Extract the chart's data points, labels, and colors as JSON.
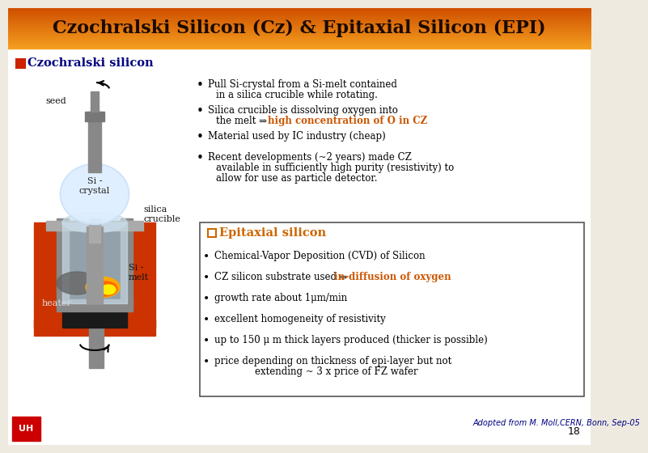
{
  "title": "Czochralski Silicon (Cz) & Epitaxial Silicon (EPI)",
  "title_bg_top": "#f5a020",
  "title_bg_bot": "#d05000",
  "title_text_color": "#1a0a00",
  "bg_color": "#eeeae0",
  "cz_label": "Czochralski silicon",
  "cz_label_color": "#000080",
  "cz_box_color": "#cc2200",
  "epi_label": "Epitaxial silicon",
  "epi_label_color": "#cc6600",
  "epi_box_color": "#cc6600",
  "footer": "Adopted from M. Moll,CERN, Bonn, Sep-05",
  "page_num": "18",
  "white": "#ffffff",
  "black": "#000000",
  "orange_highlight": "#cc5500"
}
